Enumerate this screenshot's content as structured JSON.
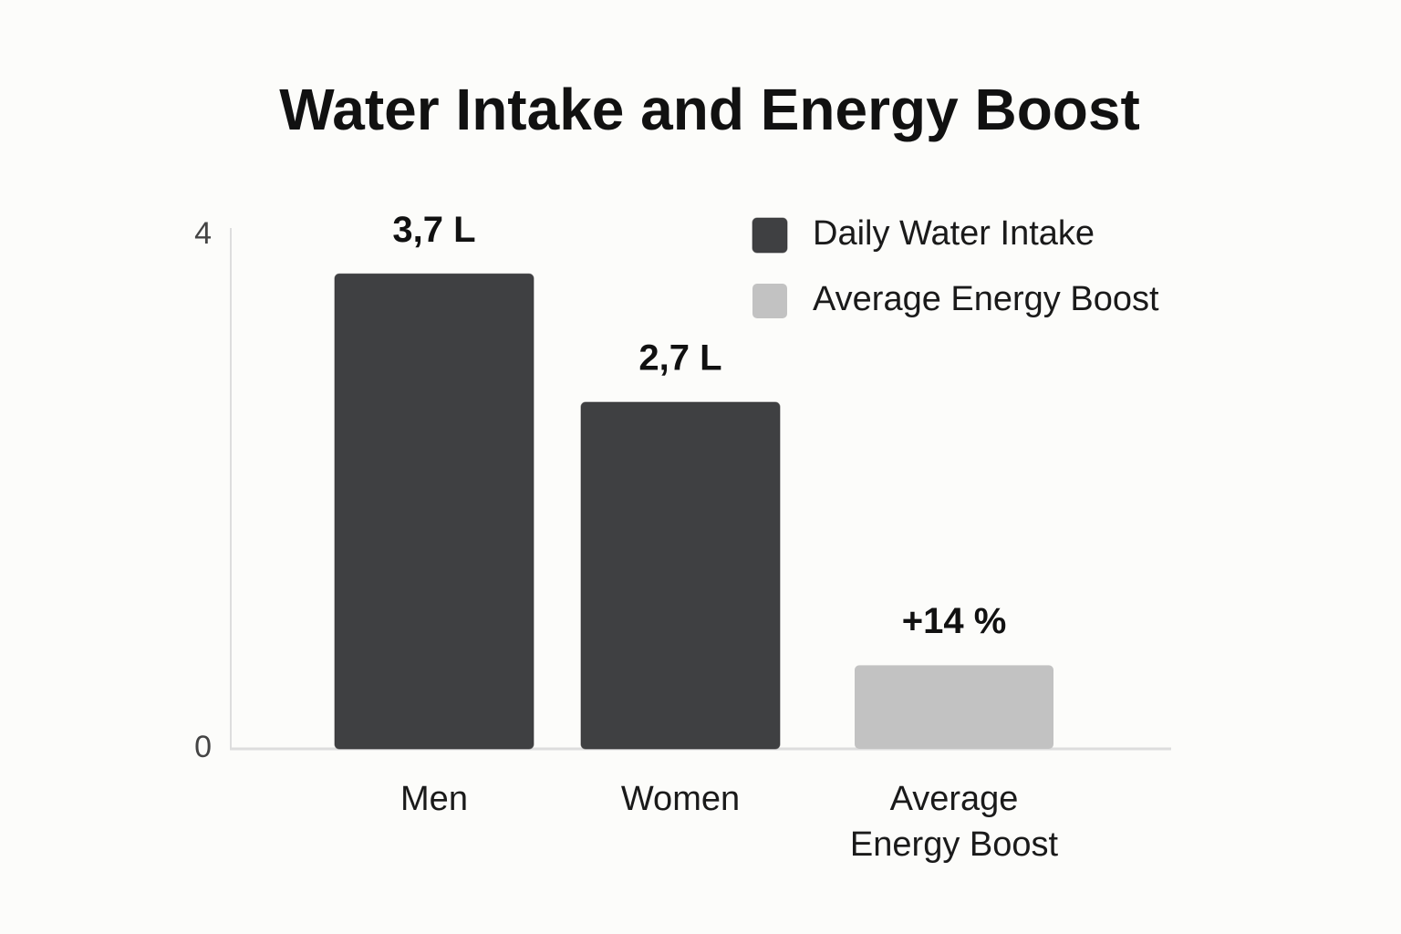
{
  "chart_data": {
    "type": "bar",
    "title": "Water Intake and Energy Boost",
    "categories": [
      "Men",
      "Women",
      "Average Energy Boost"
    ],
    "series": [
      {
        "name": "Daily Water Intake",
        "color": "#3f4042",
        "values": [
          3.7,
          2.7,
          null
        ],
        "value_labels": [
          "3,7 L",
          "2,7 L",
          null
        ]
      },
      {
        "name": "Average Energy Boost",
        "color": "#c2c2c2",
        "values": [
          null,
          null,
          14
        ],
        "value_labels": [
          null,
          null,
          "+14 %"
        ],
        "axis": "y2"
      }
    ],
    "ylim": [
      0,
      4
    ],
    "yticks": [
      0,
      4
    ],
    "y2lim": [
      0,
      86
    ],
    "grid": false,
    "legend": "top-right"
  }
}
